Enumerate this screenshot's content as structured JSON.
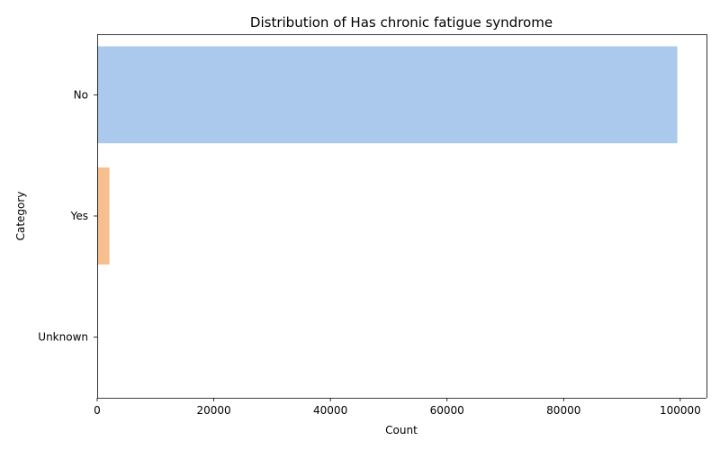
{
  "chart_data": {
    "type": "bar",
    "orientation": "horizontal",
    "title": "Distribution of Has chronic fatigue syndrome",
    "xlabel": "Count",
    "ylabel": "Category",
    "categories": [
      "No",
      "Yes",
      "Unknown"
    ],
    "values": [
      99500,
      2100,
      0
    ],
    "colors": [
      "#abc9ed",
      "#f7bf8f",
      "#96d8a8"
    ],
    "xlim": [
      0,
      104500
    ],
    "xticks": [
      0,
      20000,
      40000,
      60000,
      80000,
      100000
    ],
    "grid": false,
    "legend": "none"
  }
}
